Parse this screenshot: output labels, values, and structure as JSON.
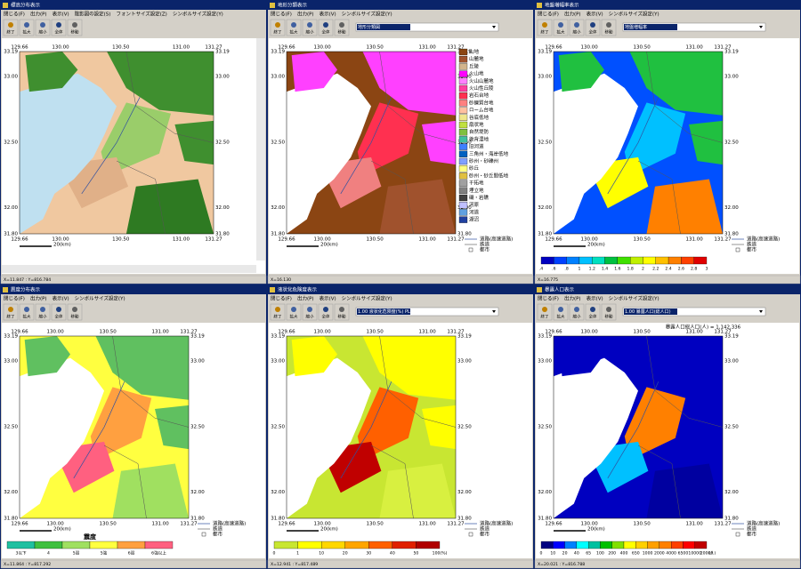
{
  "toolbar": [
    "終了",
    "拡大",
    "縮小",
    "全体",
    "移動"
  ],
  "lon_ticks": [
    "129.66",
    "130.00",
    "130.50",
    "131.00",
    "131.27"
  ],
  "lat_ticks": [
    "33.19",
    "33.00",
    "32.50",
    "32.00",
    "31.80"
  ],
  "scale": "20(km)",
  "road_legend": [
    "道路(高速道路)",
    "鉄道",
    "都市"
  ],
  "panes": [
    {
      "title": "標高分布表示",
      "menu": [
        "閉じる(F)",
        "出力(P)",
        "表示(V)",
        "陰影図の設定(S)",
        "フォントサイズ設定(Z)",
        "シンボルサイズ設定(Y)"
      ],
      "palette": [
        "#f0c8a0",
        "#3f8f2f",
        "#9acd6a",
        "#e0b088",
        "#2e7a22"
      ],
      "sea": "#bfe0f0",
      "status": "X=11.847 : Y=816.784"
    },
    {
      "title": "地形分類表示",
      "menu": [
        "閉じる(F)",
        "出力(P)",
        "表示(V)",
        "シンボルサイズ設定(Y)"
      ],
      "dropdown": "地形分類図",
      "palette": [
        "#8b4513",
        "#ff40ff",
        "#ff3050",
        "#f08080",
        "#a0522d"
      ],
      "sea": "#ffffff",
      "status": "X=16.130",
      "legend": {
        "kind": "list",
        "labels": [
          "山地",
          "山麓地",
          "丘陵",
          "火山地",
          "火山山麓地",
          "火山性丘陵",
          "岩石台地",
          "砂礫質台地",
          "ローム台地",
          "谷底低地",
          "扇状地",
          "自然堤防",
          "後背湿地",
          "旧河道",
          "三角州・海岸低地",
          "砂州・砂礫州",
          "砂丘",
          "砂州・砂丘間低地",
          "干拓地",
          "埋立地",
          "磯・岩礁",
          "河原",
          "河道",
          "湖沼"
        ],
        "colors": [
          "#8b4513",
          "#a0522d",
          "#d2b48c",
          "#ff00ff",
          "#ff80ff",
          "#ff40a0",
          "#ff3050",
          "#ff8080",
          "#ffc0a0",
          "#f0e68c",
          "#c0e040",
          "#80c040",
          "#40c0a0",
          "#4080ff",
          "#0060c0",
          "#80a0ff",
          "#ffff80",
          "#e0c040",
          "#a0a0a0",
          "#808080",
          "#404040",
          "#c0c0ff",
          "#60a0e0",
          "#2040a0"
        ]
      }
    },
    {
      "title": "地盤増幅率表示",
      "menu": [
        "閉じる(F)",
        "出力(P)",
        "表示(V)",
        "シンボルサイズ設定(Y)"
      ],
      "dropdown": "地盤増幅率",
      "palette": [
        "#0050ff",
        "#20c040",
        "#00c0ff",
        "#ffff00",
        "#ff8000"
      ],
      "sea": "#ffffff",
      "status": "X=16.775",
      "legend": {
        "kind": "bar",
        "labels": [
          ".4",
          ".6",
          ".8",
          "1",
          "1.2",
          "1.4",
          "1.6",
          "1.8",
          "2",
          "2.2",
          "2.4",
          "2.6",
          "2.8",
          "3"
        ],
        "colors": [
          "#0000c0",
          "#0040ff",
          "#0080ff",
          "#00c0ff",
          "#00e0c0",
          "#00c040",
          "#40e000",
          "#c0f000",
          "#ffff00",
          "#ffc000",
          "#ff8000",
          "#ff4000",
          "#e00000"
        ]
      }
    },
    {
      "title": "震度分布表示",
      "menu": [
        "閉じる(F)",
        "出力(P)",
        "表示(V)",
        "シンボルサイズ設定(Y)"
      ],
      "palette": [
        "#ffff40",
        "#60c060",
        "#ffa040",
        "#ff6080",
        "#a0e060"
      ],
      "sea": "#ffffff",
      "status": "X=11.864 : Y=817.292",
      "legend": {
        "kind": "bar",
        "title": "震度",
        "labels": [
          "3以下",
          "4",
          "5弱",
          "5強",
          "6弱",
          "6強以上"
        ],
        "colors": [
          "#20c0a0",
          "#40c040",
          "#a0e060",
          "#ffff40",
          "#ffa040",
          "#ff6080"
        ]
      }
    },
    {
      "title": "液状化危険度表示",
      "menu": [
        "閉じる(F)",
        "出力(P)",
        "表示(V)",
        "シンボルサイズ設定(Y)"
      ],
      "dropdown": "1.00 液状化危険度(%) PL",
      "palette": [
        "#c8e632",
        "#ffff00",
        "#ff6000",
        "#c00000",
        "#d8f040"
      ],
      "sea": "#ffffff",
      "status": "X=12.941 : Y=817.489",
      "legend": {
        "kind": "bar",
        "labels": [
          "0",
          "1",
          "10",
          "20",
          "30",
          "40",
          "50",
          "100(%)"
        ],
        "colors": [
          "#c8e632",
          "#ffff00",
          "#ffd700",
          "#ffa500",
          "#ff6000",
          "#e02000",
          "#b00000"
        ]
      }
    },
    {
      "title": "暴露人口表示",
      "menu": [
        "閉じる(F)",
        "出力(P)",
        "表示(V)",
        "シンボルサイズ設定(Y)"
      ],
      "dropdown": "1.00 暴露人口(総人口)",
      "header": "暴露人口総人口(人) = 1,142,336",
      "palette": [
        "#0000c0",
        "#0000c0",
        "#ff8000",
        "#00c0ff",
        "#0000a0"
      ],
      "sea": "#ffffff",
      "status": "X=20.021 : Y=816.788",
      "legend": {
        "kind": "bar",
        "labels": [
          "0",
          "10",
          "20",
          "40",
          "65",
          "100",
          "200",
          "400",
          "650",
          "1000",
          "2000",
          "4000",
          "6500",
          "10000",
          "20000"
        ],
        "unit": "(人)",
        "colors": [
          "#000080",
          "#0000ff",
          "#0080ff",
          "#00ffff",
          "#00c0a0",
          "#00c000",
          "#80e000",
          "#ffff00",
          "#ffd000",
          "#ffa000",
          "#ff8000",
          "#ff4000",
          "#ff0000",
          "#c00000"
        ]
      }
    }
  ]
}
